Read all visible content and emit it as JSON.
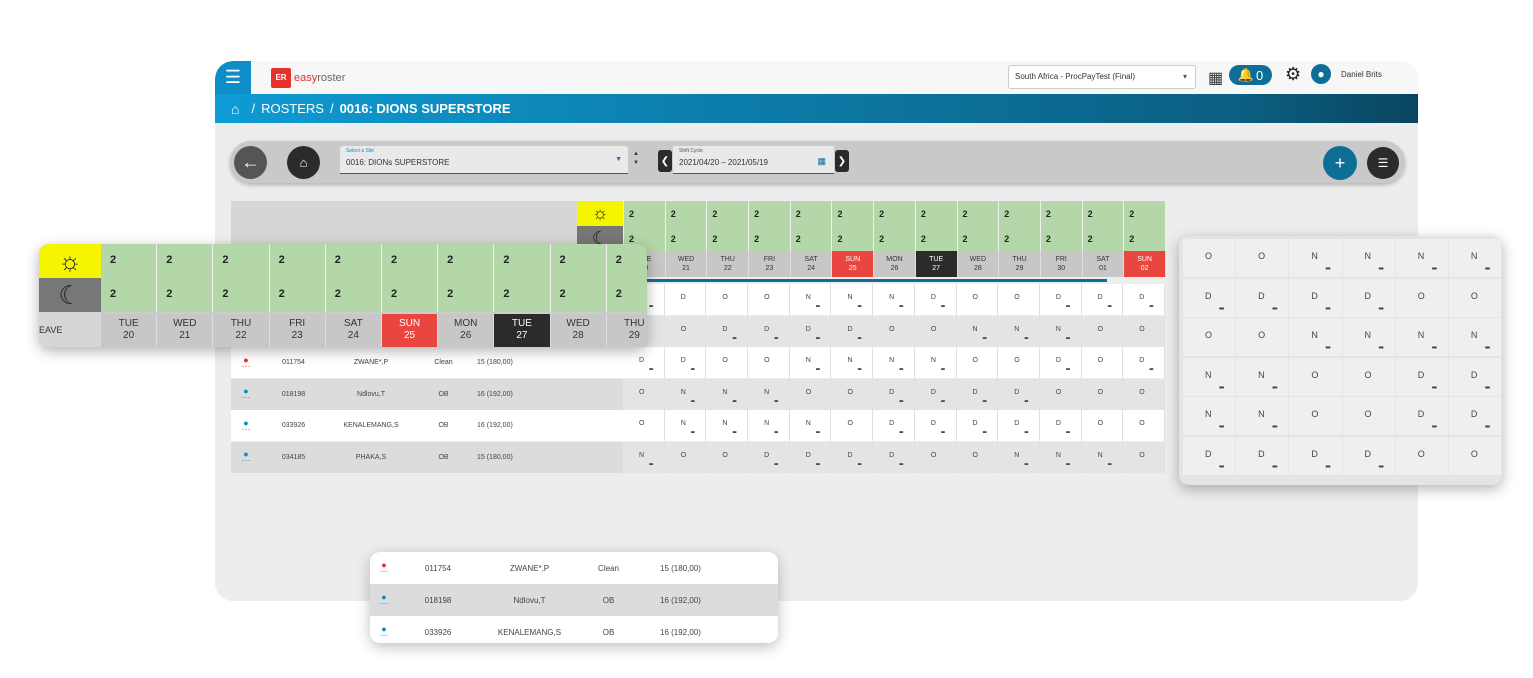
{
  "app": {
    "logo_badge": "ER",
    "logo_text_a": "easy",
    "logo_text_b": "roster",
    "tenant": "South Africa - ProcPayTest (Final)",
    "notifications": "0",
    "user_name": "Daniel Brits"
  },
  "breadcrumb": {
    "section": "ROSTERS",
    "page": "0016: DIONS SUPERSTORE"
  },
  "toolbar": {
    "site_label": "Select a Site",
    "site_value": "0016: DIONs SUPERSTORE",
    "cycle_label": "Shift Cycle",
    "cycle_value": "2021/04/20 – 2021/05/19"
  },
  "grid": {
    "day_count": "2",
    "night_count": "2",
    "days": [
      {
        "dow": "TUE",
        "date": "20",
        "style": "normal"
      },
      {
        "dow": "WED",
        "date": "21",
        "style": "normal"
      },
      {
        "dow": "THU",
        "date": "22",
        "style": "normal"
      },
      {
        "dow": "FRI",
        "date": "23",
        "style": "normal"
      },
      {
        "dow": "SAT",
        "date": "24",
        "style": "normal"
      },
      {
        "dow": "SUN",
        "date": "25",
        "style": "red"
      },
      {
        "dow": "MON",
        "date": "26",
        "style": "normal"
      },
      {
        "dow": "TUE",
        "date": "27",
        "style": "dark"
      },
      {
        "dow": "WED",
        "date": "28",
        "style": "normal"
      },
      {
        "dow": "THU",
        "date": "29",
        "style": "normal"
      },
      {
        "dow": "FRI",
        "date": "30",
        "style": "normal"
      },
      {
        "dow": "SAT",
        "date": "01",
        "style": "normal"
      },
      {
        "dow": "SUN",
        "date": "02",
        "style": "red"
      }
    ],
    "rows": [
      {
        "id": "",
        "name": "",
        "cat": "",
        "hrs": "",
        "icon": "blue",
        "shifts": [
          "D",
          "D",
          "O",
          "O",
          "N",
          "N",
          "N",
          "D",
          "O",
          "O",
          "D",
          "D",
          "D"
        ],
        "dots": [
          1,
          0,
          0,
          0,
          1,
          1,
          1,
          1,
          0,
          0,
          1,
          1,
          1
        ]
      },
      {
        "id": "",
        "name": "",
        "cat": "",
        "hrs": "",
        "icon": "blue",
        "shifts": [
          "O",
          "O",
          "D",
          "D",
          "D",
          "D",
          "O",
          "O",
          "N",
          "N",
          "N",
          "O",
          "O"
        ],
        "dots": [
          0,
          0,
          1,
          1,
          1,
          1,
          0,
          0,
          1,
          1,
          1,
          0,
          0
        ]
      },
      {
        "id": "011754",
        "name": "ZWANE*,P",
        "cat": "Clean",
        "hrs": "15 (180,00)",
        "icon": "red",
        "shifts": [
          "D",
          "D",
          "O",
          "O",
          "N",
          "N",
          "N",
          "N",
          "O",
          "O",
          "D",
          "O",
          "D"
        ],
        "dots": [
          1,
          1,
          0,
          0,
          1,
          1,
          1,
          1,
          0,
          0,
          1,
          0,
          1
        ]
      },
      {
        "id": "018198",
        "name": "Ndlovu,T",
        "cat": "OB",
        "hrs": "16 (192,00)",
        "icon": "blue",
        "shifts": [
          "O",
          "N",
          "N",
          "N",
          "O",
          "O",
          "D",
          "D",
          "D",
          "D",
          "O",
          "O",
          "O"
        ],
        "dots": [
          0,
          1,
          1,
          1,
          0,
          0,
          1,
          1,
          1,
          1,
          0,
          0,
          0
        ]
      },
      {
        "id": "033926",
        "name": "KENALEMANG,S",
        "cat": "OB",
        "hrs": "16 (192,00)",
        "icon": "blue",
        "shifts": [
          "O",
          "N",
          "N",
          "N",
          "N",
          "O",
          "D",
          "D",
          "D",
          "D",
          "D",
          "O",
          "O"
        ],
        "dots": [
          0,
          1,
          1,
          1,
          1,
          0,
          1,
          1,
          1,
          1,
          1,
          0,
          0
        ]
      },
      {
        "id": "034185",
        "name": "PHAKA,S",
        "cat": "OB",
        "hrs": "15 (180,00)",
        "icon": "blue",
        "shifts": [
          "N",
          "O",
          "O",
          "D",
          "D",
          "D",
          "D",
          "O",
          "O",
          "N",
          "N",
          "N",
          "O"
        ],
        "dots": [
          1,
          0,
          0,
          1,
          1,
          1,
          1,
          0,
          0,
          1,
          1,
          1,
          0
        ]
      }
    ]
  },
  "zoom_card": {
    "left_label": "EAVE",
    "day_count": "2",
    "night_count": "2",
    "days": [
      {
        "dow": "TUE",
        "date": "20",
        "style": "normal"
      },
      {
        "dow": "WED",
        "date": "21",
        "style": "normal"
      },
      {
        "dow": "THU",
        "date": "22",
        "style": "normal"
      },
      {
        "dow": "FRI",
        "date": "23",
        "style": "normal"
      },
      {
        "dow": "SAT",
        "date": "24",
        "style": "normal"
      },
      {
        "dow": "SUN",
        "date": "25",
        "style": "red"
      },
      {
        "dow": "MON",
        "date": "26",
        "style": "normal"
      },
      {
        "dow": "TUE",
        "date": "27",
        "style": "dark"
      },
      {
        "dow": "WED",
        "date": "28",
        "style": "normal"
      },
      {
        "dow": "THU",
        "date": "29",
        "style": "normal"
      }
    ]
  },
  "shift_card": {
    "rows": [
      {
        "shifts": [
          "O",
          "O",
          "N",
          "N",
          "N",
          "N"
        ],
        "dots": [
          0,
          0,
          1,
          1,
          1,
          1
        ]
      },
      {
        "shifts": [
          "D",
          "D",
          "D",
          "D",
          "O",
          "O"
        ],
        "dots": [
          1,
          1,
          1,
          1,
          0,
          0
        ]
      },
      {
        "shifts": [
          "O",
          "O",
          "N",
          "N",
          "N",
          "N"
        ],
        "dots": [
          0,
          0,
          1,
          1,
          1,
          1
        ]
      },
      {
        "shifts": [
          "N",
          "N",
          "O",
          "O",
          "D",
          "D"
        ],
        "dots": [
          1,
          1,
          0,
          0,
          1,
          1
        ]
      },
      {
        "shifts": [
          "N",
          "N",
          "O",
          "O",
          "D",
          "D"
        ],
        "dots": [
          1,
          1,
          0,
          0,
          1,
          1
        ]
      },
      {
        "shifts": [
          "D",
          "D",
          "D",
          "D",
          "O",
          "O"
        ],
        "dots": [
          1,
          1,
          1,
          1,
          0,
          0
        ]
      }
    ]
  },
  "emp_card": {
    "rows": [
      {
        "id": "011754",
        "name": "ZWANE*,P",
        "cat": "Clean",
        "hrs": "15 (180,00)",
        "icon": "red"
      },
      {
        "id": "018198",
        "name": "Ndlovu,T",
        "cat": "OB",
        "hrs": "16 (192,00)",
        "icon": "blue"
      },
      {
        "id": "033926",
        "name": "KENALEMANG,S",
        "cat": "OB",
        "hrs": "16 (192,00)",
        "icon": "blue"
      }
    ]
  },
  "icons": {
    "menu": "menu-icon",
    "apps": "apps-grid-icon",
    "bell": "bell-icon",
    "gear": "gear-icon",
    "user": "user-icon",
    "home": "home-icon",
    "back": "arrow-left-icon",
    "add": "plus-icon",
    "filter": "filter-icon",
    "sun": "sun-icon",
    "moon": "moon-icon"
  },
  "colors": {
    "accent": "#0d8ec9",
    "dark_blue": "#0d6f98",
    "count_green": "#b3d7a8",
    "sunday_red": "#e8463f",
    "today_dark": "#2b2b2b",
    "sun_yellow": "#f5f500"
  }
}
